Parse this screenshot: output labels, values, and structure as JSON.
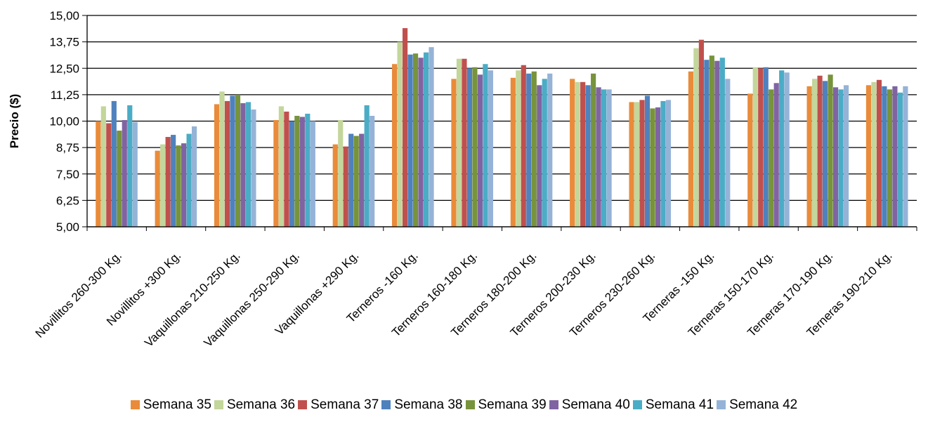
{
  "chart_data": {
    "type": "bar",
    "ylabel": "Precio ($)",
    "ylim": [
      5.0,
      15.0
    ],
    "yticks": [
      "5,00",
      "6,25",
      "7,50",
      "8,75",
      "10,00",
      "11,25",
      "12,50",
      "13,75",
      "15,00"
    ],
    "grid": true,
    "legend_position": "bottom",
    "categories": [
      "Novillitos 260-300 Kg.",
      "Novillitos +300 Kg.",
      "Vaquillonas 210-250 Kg.",
      "Vaquillonas 250-290 Kg.",
      "Vaquillonas +290 Kg.",
      "Terneros -160 Kg.",
      "Terneros 160-180 Kg.",
      "Terneros 180-200 Kg.",
      "Terneros 200-230 Kg.",
      "Terneros 230-260 Kg.",
      "Terneras -150 Kg.",
      "Terneras 150-170 Kg.",
      "Terneras 170-190 Kg.",
      "Terneras 190-210 Kg."
    ],
    "series": [
      {
        "name": "Semana 35",
        "color": "#E98B3A",
        "values": [
          10.0,
          8.6,
          10.8,
          10.05,
          8.9,
          12.7,
          12.0,
          12.05,
          12.0,
          10.9,
          12.35,
          11.3,
          11.65,
          11.7
        ]
      },
      {
        "name": "Semana 36",
        "color": "#C3D69B",
        "values": [
          10.7,
          8.9,
          11.4,
          10.7,
          10.05,
          13.75,
          12.95,
          12.4,
          11.85,
          10.9,
          13.45,
          12.55,
          12.0,
          11.85
        ]
      },
      {
        "name": "Semana 37",
        "color": "#C0504D",
        "values": [
          9.9,
          9.25,
          10.95,
          10.45,
          8.8,
          14.4,
          12.95,
          12.65,
          11.85,
          11.0,
          13.85,
          12.5,
          12.15,
          11.95
        ]
      },
      {
        "name": "Semana 38",
        "color": "#4F81BD",
        "values": [
          10.95,
          9.35,
          11.2,
          10.0,
          9.4,
          13.15,
          12.5,
          12.25,
          11.7,
          11.2,
          12.9,
          12.55,
          11.9,
          11.65
        ]
      },
      {
        "name": "Semana 39",
        "color": "#77933C",
        "values": [
          9.55,
          8.85,
          11.25,
          10.25,
          9.3,
          13.2,
          12.55,
          12.35,
          12.25,
          10.6,
          13.1,
          11.5,
          12.2,
          11.5
        ]
      },
      {
        "name": "Semana 40",
        "color": "#8064A2",
        "values": [
          10.05,
          8.95,
          10.85,
          10.2,
          9.4,
          13.0,
          12.2,
          11.7,
          11.6,
          10.65,
          12.85,
          11.8,
          11.6,
          11.65
        ]
      },
      {
        "name": "Semana 41",
        "color": "#4BACC6",
        "values": [
          10.75,
          9.4,
          10.9,
          10.35,
          10.75,
          13.25,
          12.7,
          12.0,
          11.5,
          10.95,
          13.0,
          12.4,
          11.5,
          11.35
        ]
      },
      {
        "name": "Semana 42",
        "color": "#95B3D7",
        "values": [
          9.95,
          9.75,
          10.55,
          10.0,
          10.25,
          13.5,
          12.4,
          12.25,
          11.5,
          11.0,
          12.0,
          12.3,
          11.7,
          11.65
        ]
      }
    ]
  }
}
